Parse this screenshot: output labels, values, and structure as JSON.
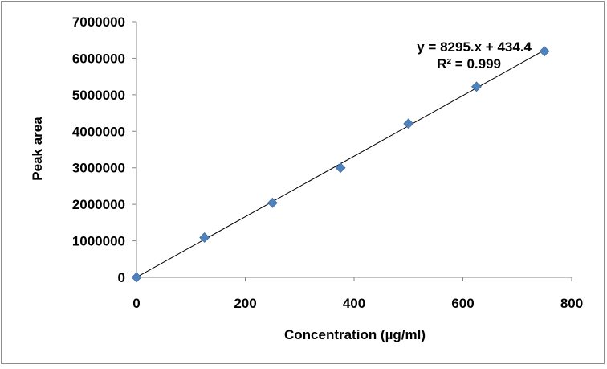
{
  "chart_data": {
    "type": "scatter",
    "title": "",
    "xlabel": "Concentration (µg/ml)",
    "ylabel": "Peak area",
    "xlim": [
      0,
      800
    ],
    "ylim": [
      0,
      7000000
    ],
    "xticks": [
      0,
      200,
      400,
      600,
      800
    ],
    "yticks": [
      0,
      1000000,
      2000000,
      3000000,
      4000000,
      5000000,
      6000000,
      7000000
    ],
    "grid": false,
    "legend": "none",
    "series": [
      {
        "marker": "diamond",
        "color": "#4f81bd",
        "x": [
          0,
          125,
          250,
          375,
          500,
          625,
          750
        ],
        "y": [
          0,
          1090000,
          2040000,
          3000000,
          4210000,
          5220000,
          6190000
        ]
      }
    ],
    "trendline": {
      "type": "linear",
      "slope": 8295,
      "intercept": 434.4,
      "x_range": [
        0,
        750
      ],
      "color": "#000000"
    },
    "annotations": {
      "equation": "y = 8295.x + 434.4",
      "r_squared": "R² = 0.999"
    }
  }
}
